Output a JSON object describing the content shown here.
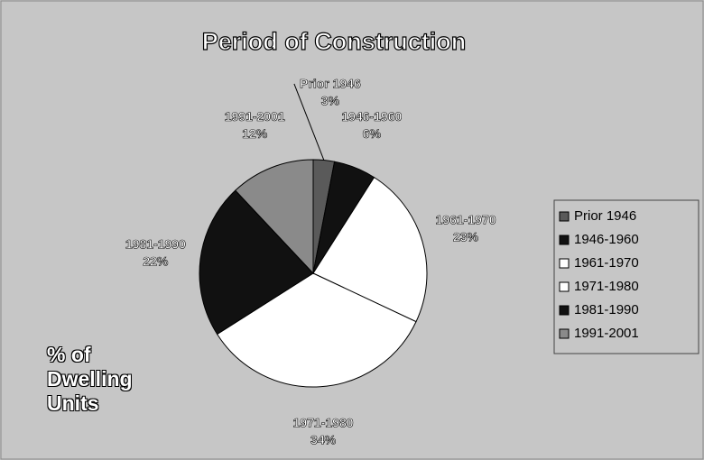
{
  "chart_data": {
    "type": "pie",
    "title": "Period of Construction",
    "annotation": "% of Dwelling Units",
    "categories": [
      "Prior 1946",
      "1946-1960",
      "1961-1970",
      "1971-1980",
      "1981-1990",
      "1991-2001"
    ],
    "values": [
      3,
      6,
      23,
      34,
      22,
      12
    ],
    "value_labels": [
      "3%",
      "6%",
      "23%",
      "34%",
      "22%",
      "12%"
    ],
    "colors": [
      "#5a5a5a",
      "#111111",
      "#ffffff",
      "#ffffff",
      "#111111",
      "#8a8a8a"
    ],
    "legend": "right"
  }
}
